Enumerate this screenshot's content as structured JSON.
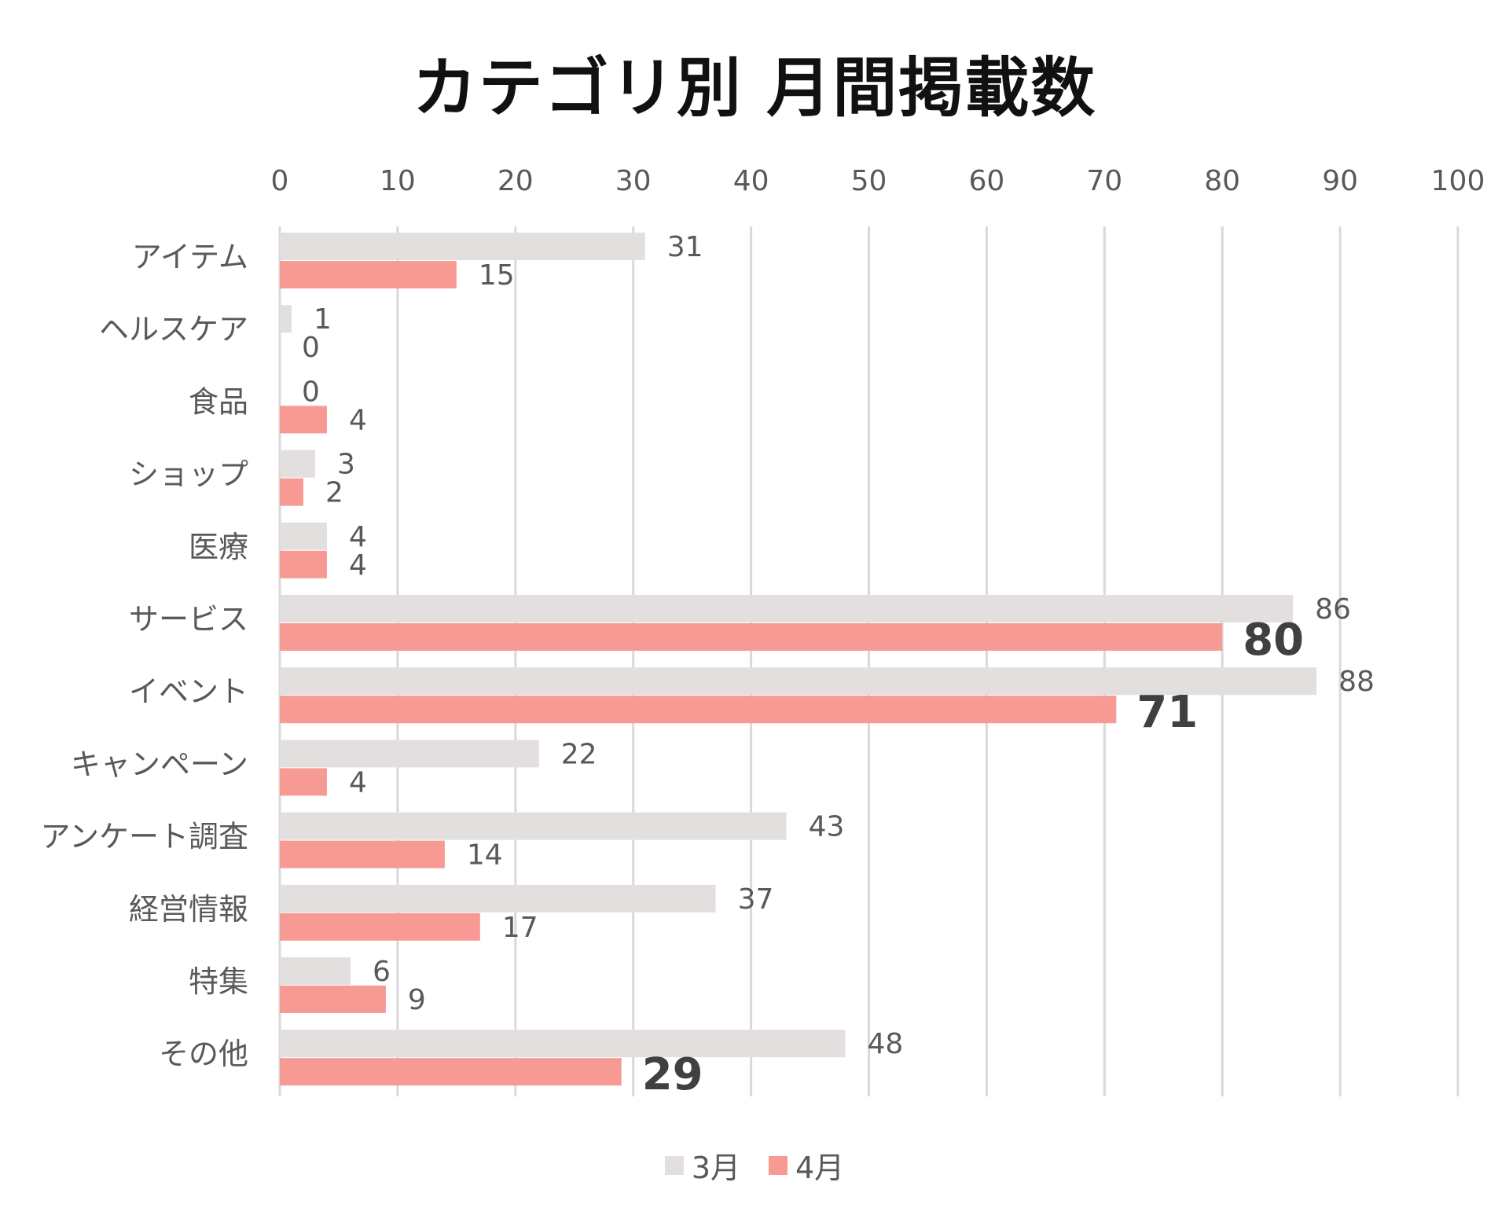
{
  "chart_data": {
    "type": "bar",
    "orientation": "horizontal",
    "title": "カテゴリ別 月間掲載数",
    "xlim": [
      0,
      100
    ],
    "xticks": [
      0,
      10,
      20,
      30,
      40,
      50,
      60,
      70,
      80,
      90,
      100
    ],
    "grid": "vertical",
    "categories": [
      "アイテム",
      "ヘルスケア",
      "食品",
      "ショップ",
      "医療",
      "サービス",
      "イベント",
      "キャンペーン",
      "アンケート調査",
      "経営情報",
      "特集",
      "その他"
    ],
    "series": [
      {
        "name": "3月",
        "color": "#e3dfdf",
        "values": [
          31,
          1,
          0,
          3,
          4,
          86,
          88,
          22,
          43,
          37,
          6,
          48
        ]
      },
      {
        "name": "4月",
        "color": "#f79a94",
        "values": [
          15,
          0,
          4,
          2,
          4,
          80,
          71,
          4,
          14,
          17,
          9,
          29
        ]
      }
    ],
    "emphasized_labels": {
      "series": "4月",
      "categories": [
        "サービス",
        "イベント",
        "その他"
      ]
    },
    "legend": "bottom"
  }
}
